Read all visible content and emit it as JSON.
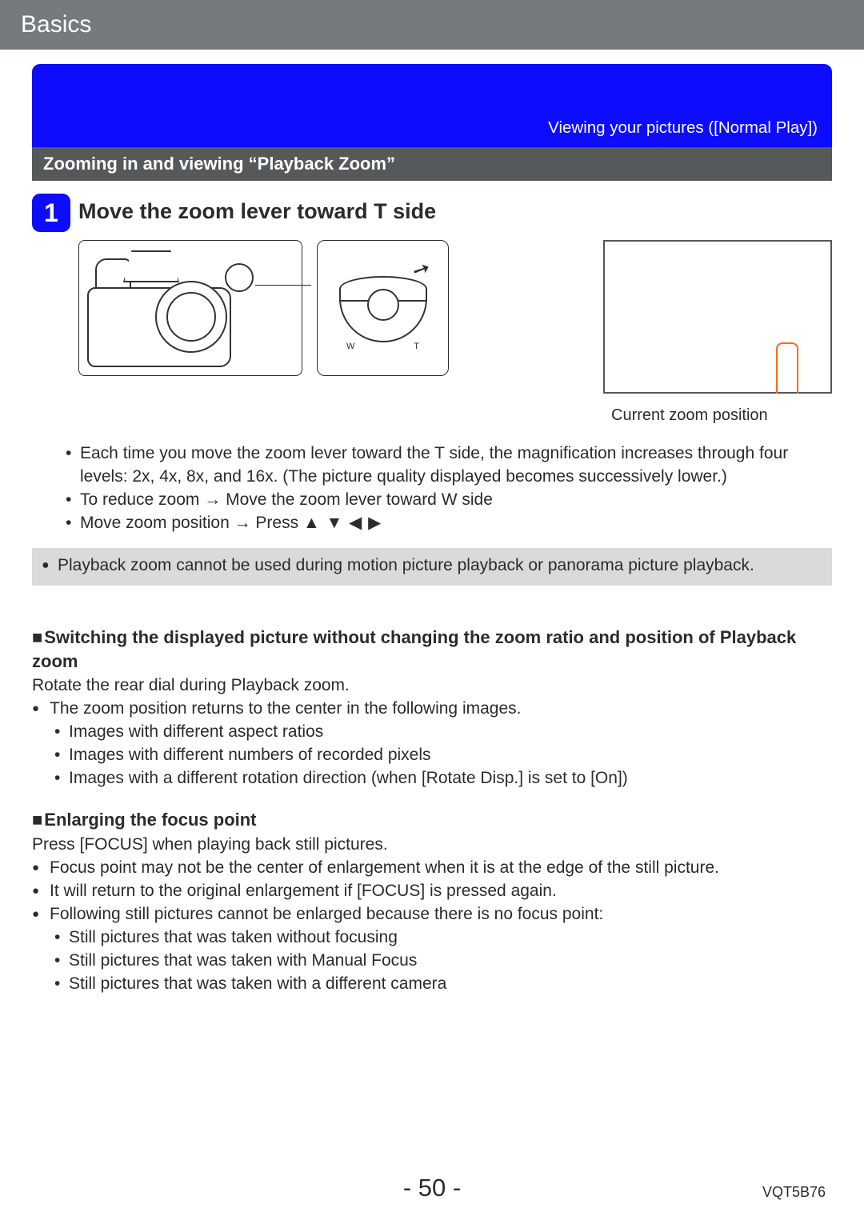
{
  "header": {
    "title": "Basics"
  },
  "blueBand": {
    "caption": "Viewing your pictures  ([Normal Play])"
  },
  "graySub": {
    "text": "Zooming in and viewing “Playback Zoom”"
  },
  "step": {
    "num": "1",
    "title": "Move the zoom lever toward T side",
    "dial_w_label": "W",
    "dial_t_label": "T",
    "zoom_caption": "Current zoom position",
    "bullets": [
      "Each time you move the zoom lever toward the T side, the magnification increases through four levels: 2x, 4x, 8x, and 16x. (The picture quality displayed becomes successively lower.)",
      "To reduce zoom → Move the zoom lever toward W side",
      "Move zoom position → Press "
    ],
    "arrow_keys": "▲ ▼ ◀ ▶"
  },
  "grayNote": {
    "text": "Playback zoom cannot be used during motion picture playback or panorama picture playback."
  },
  "switching": {
    "title": "Switching the displayed picture without changing the zoom ratio and position of Playback zoom",
    "para": "Rotate the rear dial during Playback zoom.",
    "l1": "The zoom position returns to the center in the following images.",
    "items": [
      "Images with different aspect ratios",
      "Images with different numbers of recorded pixels",
      "Images with a different rotation direction (when [Rotate Disp.] is set to [On])"
    ]
  },
  "enlarging": {
    "title": "Enlarging the focus point",
    "para": "Press [FOCUS] when playing back still pictures.",
    "l1_items": [
      "Focus point may not be the center of enlargement when it is at the edge of the still picture.",
      "It will return to the original enlargement if [FOCUS] is pressed again.",
      "Following still pictures cannot be enlarged because there is no focus point:"
    ],
    "l2_items": [
      "Still pictures that was taken without focusing",
      "Still pictures that was taken with Manual Focus",
      "Still pictures that was taken with a different camera"
    ]
  },
  "footer": {
    "page": "- 50 -",
    "code": "VQT5B76"
  },
  "colors": {
    "header_bg": "#757b7d",
    "blue": "#0e0cff",
    "gray_band": "#55595a",
    "gray_note": "#d9dbdb",
    "indicator": "#ff6a13"
  }
}
